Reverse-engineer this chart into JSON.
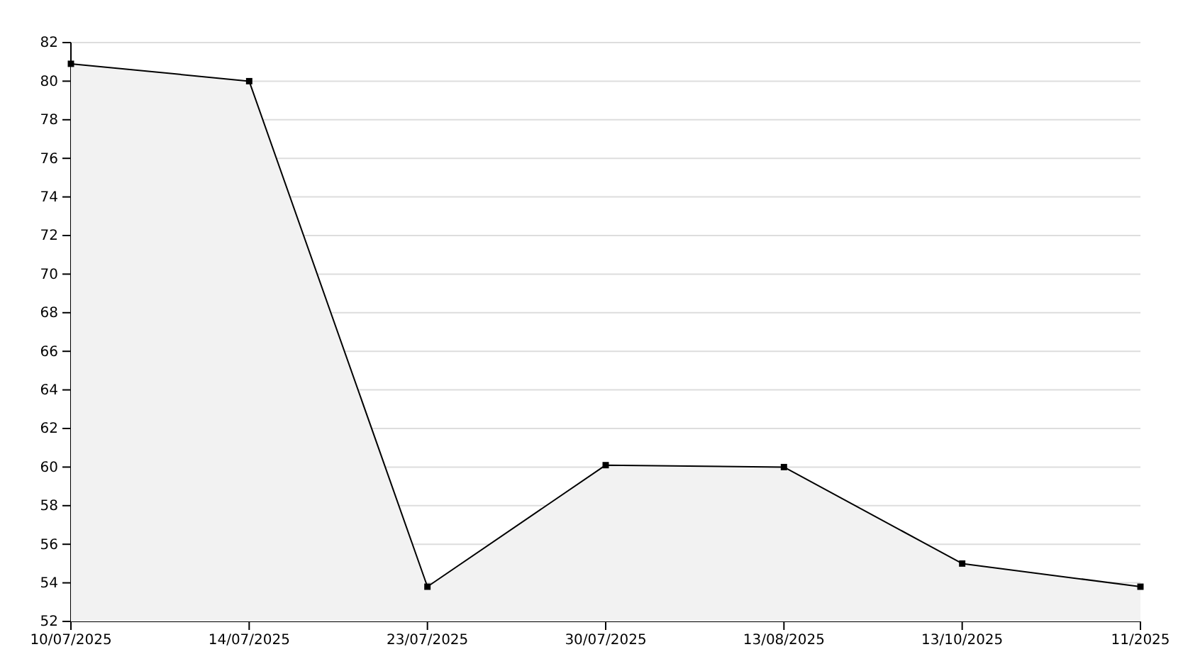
{
  "chart_data": {
    "type": "area",
    "categories": [
      "10/07/2025",
      "14/07/2025",
      "23/07/2025",
      "30/07/2025",
      "13/08/2025",
      "13/10/2025",
      "11/2025"
    ],
    "series": [
      {
        "color": "#000000",
        "values": [
          80.9,
          80.0,
          53.8,
          60.1,
          60.0,
          55.0,
          53.8
        ]
      }
    ],
    "ylim": [
      52,
      82
    ],
    "yticks": [
      52,
      54,
      56,
      58,
      60,
      62,
      64,
      66,
      68,
      70,
      72,
      74,
      76,
      78,
      80,
      82
    ],
    "grid": "y",
    "marker": "square",
    "line_style": "solid"
  }
}
